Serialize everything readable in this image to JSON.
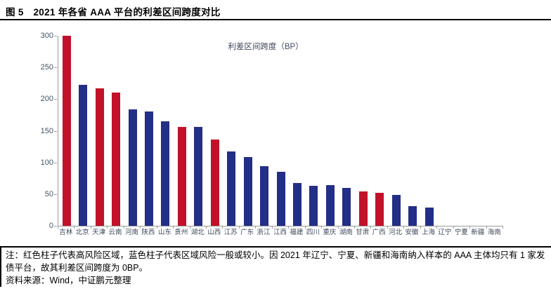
{
  "figure": {
    "title": "图 5　2021 年各省 AAA 平台的利差区间跨度对比",
    "note": "注：红色柱子代表高风险区域，蓝色柱子代表区域风险一般或较小。因 2021 年辽宁、宁夏、新疆和海南纳入样本的 AAA 主体均只有 1 家发债平台，故其利差区间跨度为 0BP。",
    "source": "资料来源：Wind，中证鹏元整理"
  },
  "colors": {
    "high_risk_red": "#c2112a",
    "normal_blue": "#232e87",
    "axis_line": "#9a9a9a",
    "axis_text": "#44546a"
  },
  "chart_data": {
    "type": "bar",
    "title": "利差区间跨度（BP）",
    "legend_position": "top-center",
    "grid": false,
    "xlabel": "",
    "ylabel": "",
    "ylim": [
      0,
      300
    ],
    "yticks": [
      0,
      50,
      100,
      150,
      200,
      250,
      300
    ],
    "categories": [
      "吉林",
      "北京",
      "天津",
      "云南",
      "河南",
      "陕西",
      "山东",
      "贵州",
      "湖北",
      "山西",
      "江苏",
      "广东",
      "浙江",
      "江西",
      "福建",
      "四川",
      "重庆",
      "湖南",
      "甘肃",
      "广西",
      "河北",
      "安徽",
      "上海",
      "辽宁",
      "宁夏",
      "新疆",
      "海南"
    ],
    "values": [
      300,
      223,
      217,
      210,
      184,
      180,
      165,
      156,
      156,
      136,
      117,
      108,
      94,
      85,
      68,
      63,
      64,
      60,
      54,
      52,
      49,
      31,
      29,
      0,
      0,
      0,
      0
    ],
    "bar_colors": [
      "red",
      "blue",
      "red",
      "red",
      "blue",
      "blue",
      "blue",
      "red",
      "blue",
      "red",
      "blue",
      "blue",
      "blue",
      "blue",
      "blue",
      "blue",
      "blue",
      "blue",
      "red",
      "red",
      "blue",
      "blue",
      "blue",
      "blue",
      "blue",
      "blue",
      "blue"
    ]
  }
}
